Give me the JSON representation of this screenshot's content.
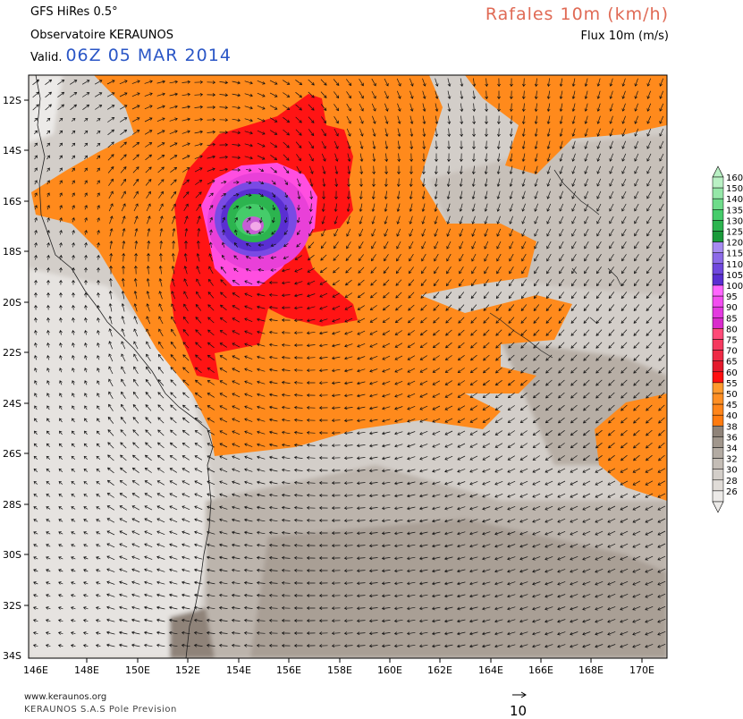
{
  "header": {
    "model": "GFS HiRes 0.5°",
    "observatory": "Observatoire KERAUNOS",
    "valid_label": "Valid.",
    "valid_value": "06Z 05 MAR 2014",
    "variable_title": "Rafales 10m (km/h)",
    "variable_subtitle": "Flux 10m (m/s)"
  },
  "map": {
    "region": "Coral Sea / Queensland coast",
    "lat_ticks": [
      "12S",
      "14S",
      "16S",
      "18S",
      "20S",
      "22S",
      "24S",
      "26S",
      "28S",
      "30S",
      "32S",
      "34S"
    ],
    "lon_ticks": [
      "146E",
      "148E",
      "150E",
      "152E",
      "154E",
      "156E",
      "158E",
      "160E",
      "162E",
      "164E",
      "166E",
      "168E",
      "170E"
    ],
    "cyclone_center": {
      "lat": -17.0,
      "lon": 155.0,
      "max_gust_kmh": 130
    }
  },
  "legend": {
    "levels": [
      {
        "label": "160",
        "color": "#b9f0c4"
      },
      {
        "label": "150",
        "color": "#95e7a8"
      },
      {
        "label": "140",
        "color": "#6edc8a"
      },
      {
        "label": "135",
        "color": "#45cc6a"
      },
      {
        "label": "130",
        "color": "#2cb44f"
      },
      {
        "label": "125",
        "color": "#1a9a3a"
      },
      {
        "label": "120",
        "color": "#a68bf0"
      },
      {
        "label": "115",
        "color": "#8c6ae8"
      },
      {
        "label": "110",
        "color": "#7048de"
      },
      {
        "label": "105",
        "color": "#5a2fd2"
      },
      {
        "label": "100",
        "color": "#ff66ff"
      },
      {
        "label": "95",
        "color": "#f24ef0"
      },
      {
        "label": "90",
        "color": "#e33ae0"
      },
      {
        "label": "85",
        "color": "#d92bcc"
      },
      {
        "label": "80",
        "color": "#ff4a78"
      },
      {
        "label": "75",
        "color": "#f53a5f"
      },
      {
        "label": "70",
        "color": "#ee2a45"
      },
      {
        "label": "65",
        "color": "#e41a2c"
      },
      {
        "label": "60",
        "color": "#ff1010"
      },
      {
        "label": "55",
        "color": "#ff9a2e"
      },
      {
        "label": "50",
        "color": "#ff8f24"
      },
      {
        "label": "45",
        "color": "#ff851a"
      },
      {
        "label": "40",
        "color": "#ff7b10"
      },
      {
        "label": "38",
        "color": "#8f8379"
      },
      {
        "label": "36",
        "color": "#a0968c"
      },
      {
        "label": "34",
        "color": "#b3aba3"
      },
      {
        "label": "32",
        "color": "#c4bdb6"
      },
      {
        "label": "30",
        "color": "#d3cec9"
      },
      {
        "label": "28",
        "color": "#e0dcd8"
      },
      {
        "label": "26",
        "color": "#eceae8"
      }
    ]
  },
  "footer": {
    "website": "www.keraunos.org",
    "copyright": "KERAUNOS S.A.S Pole Prevision",
    "reference_vector_value": "10"
  }
}
